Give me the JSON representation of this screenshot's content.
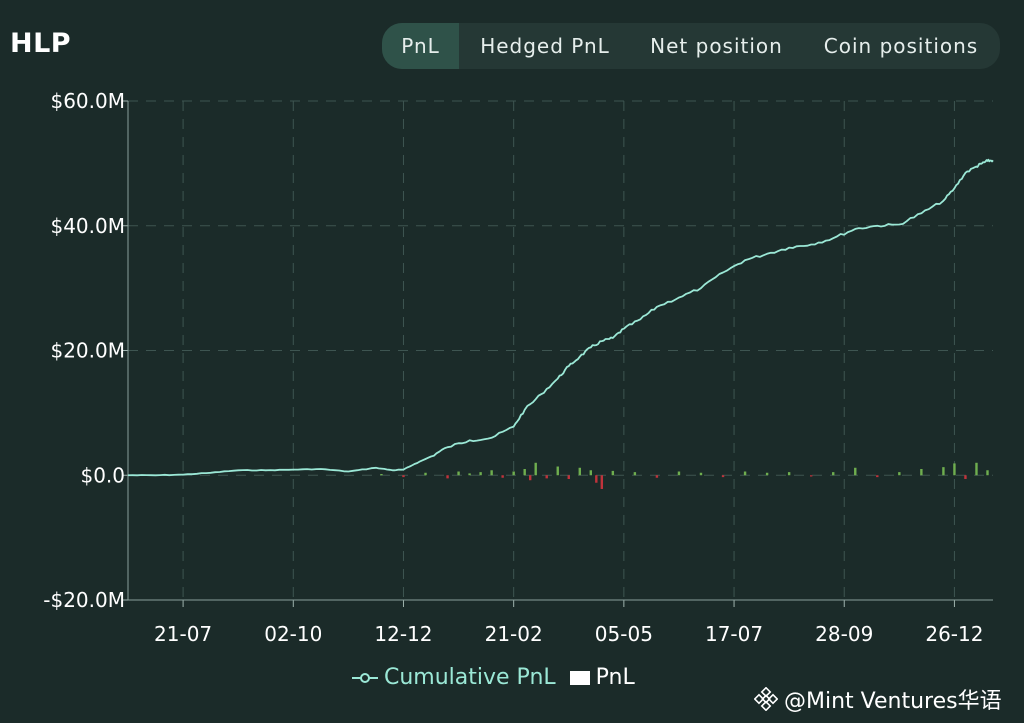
{
  "header": {
    "title": "HLP",
    "tabs": [
      {
        "label": "PnL",
        "active": true
      },
      {
        "label": "Hedged PnL",
        "active": false
      },
      {
        "label": "Net position",
        "active": false
      },
      {
        "label": "Coin positions",
        "active": false
      }
    ]
  },
  "legend": {
    "cumulative_label": "Cumulative PnL",
    "pnl_label": "PnL"
  },
  "watermark": {
    "text": "@Mint Ventures华语"
  },
  "colors": {
    "background": "#1b2b29",
    "cumulative_line": "#9be8d6",
    "positive_bar": "#6fae4f",
    "negative_bar": "#c0333b",
    "grid": "#3e5551"
  },
  "chart_data": {
    "type": "line",
    "title": "",
    "xlabel": "",
    "ylabel": "",
    "y_tick_labels": [
      "$60.0M",
      "$40.0M",
      "$20.0M",
      "$0.0",
      "-$20.0M"
    ],
    "y_ticks": [
      60,
      40,
      20,
      0,
      -20
    ],
    "ylim": [
      -20,
      60
    ],
    "x_tick_labels": [
      "21-07",
      "02-10",
      "12-12",
      "21-02",
      "05-05",
      "17-07",
      "28-09",
      "26-12"
    ],
    "x_tick_positions": [
      10,
      30,
      50,
      70,
      90,
      110,
      130,
      150
    ],
    "xlim": [
      0,
      157
    ],
    "grid": true,
    "legend_position": "bottom",
    "series": [
      {
        "name": "Cumulative PnL",
        "type": "line",
        "x": [
          0,
          5,
          10,
          15,
          20,
          25,
          30,
          35,
          40,
          45,
          48,
          50,
          52,
          55,
          58,
          62,
          66,
          70,
          72,
          75,
          78,
          80,
          82,
          84,
          86,
          88,
          90,
          93,
          96,
          100,
          104,
          108,
          112,
          116,
          120,
          124,
          128,
          132,
          136,
          140,
          144,
          148,
          150,
          152,
          154,
          155,
          156,
          157
        ],
        "values": [
          0,
          0,
          0.1,
          0.4,
          0.8,
          0.8,
          0.9,
          1.0,
          0.6,
          1.2,
          0.8,
          0.9,
          1.8,
          3.0,
          4.5,
          5.6,
          6.0,
          7.8,
          10.5,
          13.0,
          15.5,
          17.5,
          19.0,
          20.5,
          21.5,
          22.0,
          23.5,
          25.0,
          27.0,
          28.5,
          30.0,
          32.5,
          34.5,
          35.5,
          36.5,
          37.0,
          38.0,
          39.5,
          40.0,
          40.2,
          42.0,
          44.0,
          46.0,
          48.5,
          49.5,
          50.0,
          50.4,
          50.5
        ]
      },
      {
        "name": "PnL",
        "type": "bar",
        "x": [
          46,
          50,
          54,
          58,
          60,
          62,
          64,
          66,
          68,
          70,
          72,
          73,
          74,
          76,
          78,
          80,
          82,
          84,
          85,
          86,
          88,
          92,
          96,
          100,
          104,
          108,
          112,
          116,
          120,
          124,
          128,
          132,
          136,
          140,
          144,
          148,
          150,
          152,
          154,
          156
        ],
        "values": [
          0.2,
          -0.3,
          0.4,
          -0.5,
          0.6,
          0.3,
          0.5,
          0.8,
          -0.4,
          0.6,
          1.0,
          -0.8,
          2.0,
          -0.5,
          1.4,
          -0.6,
          1.2,
          0.8,
          -1.2,
          -2.2,
          0.7,
          0.5,
          -0.4,
          0.6,
          0.4,
          -0.3,
          0.6,
          0.4,
          0.5,
          -0.2,
          0.5,
          1.2,
          -0.3,
          0.5,
          1.0,
          1.3,
          1.9,
          -0.6,
          2.0,
          0.8
        ]
      }
    ]
  }
}
